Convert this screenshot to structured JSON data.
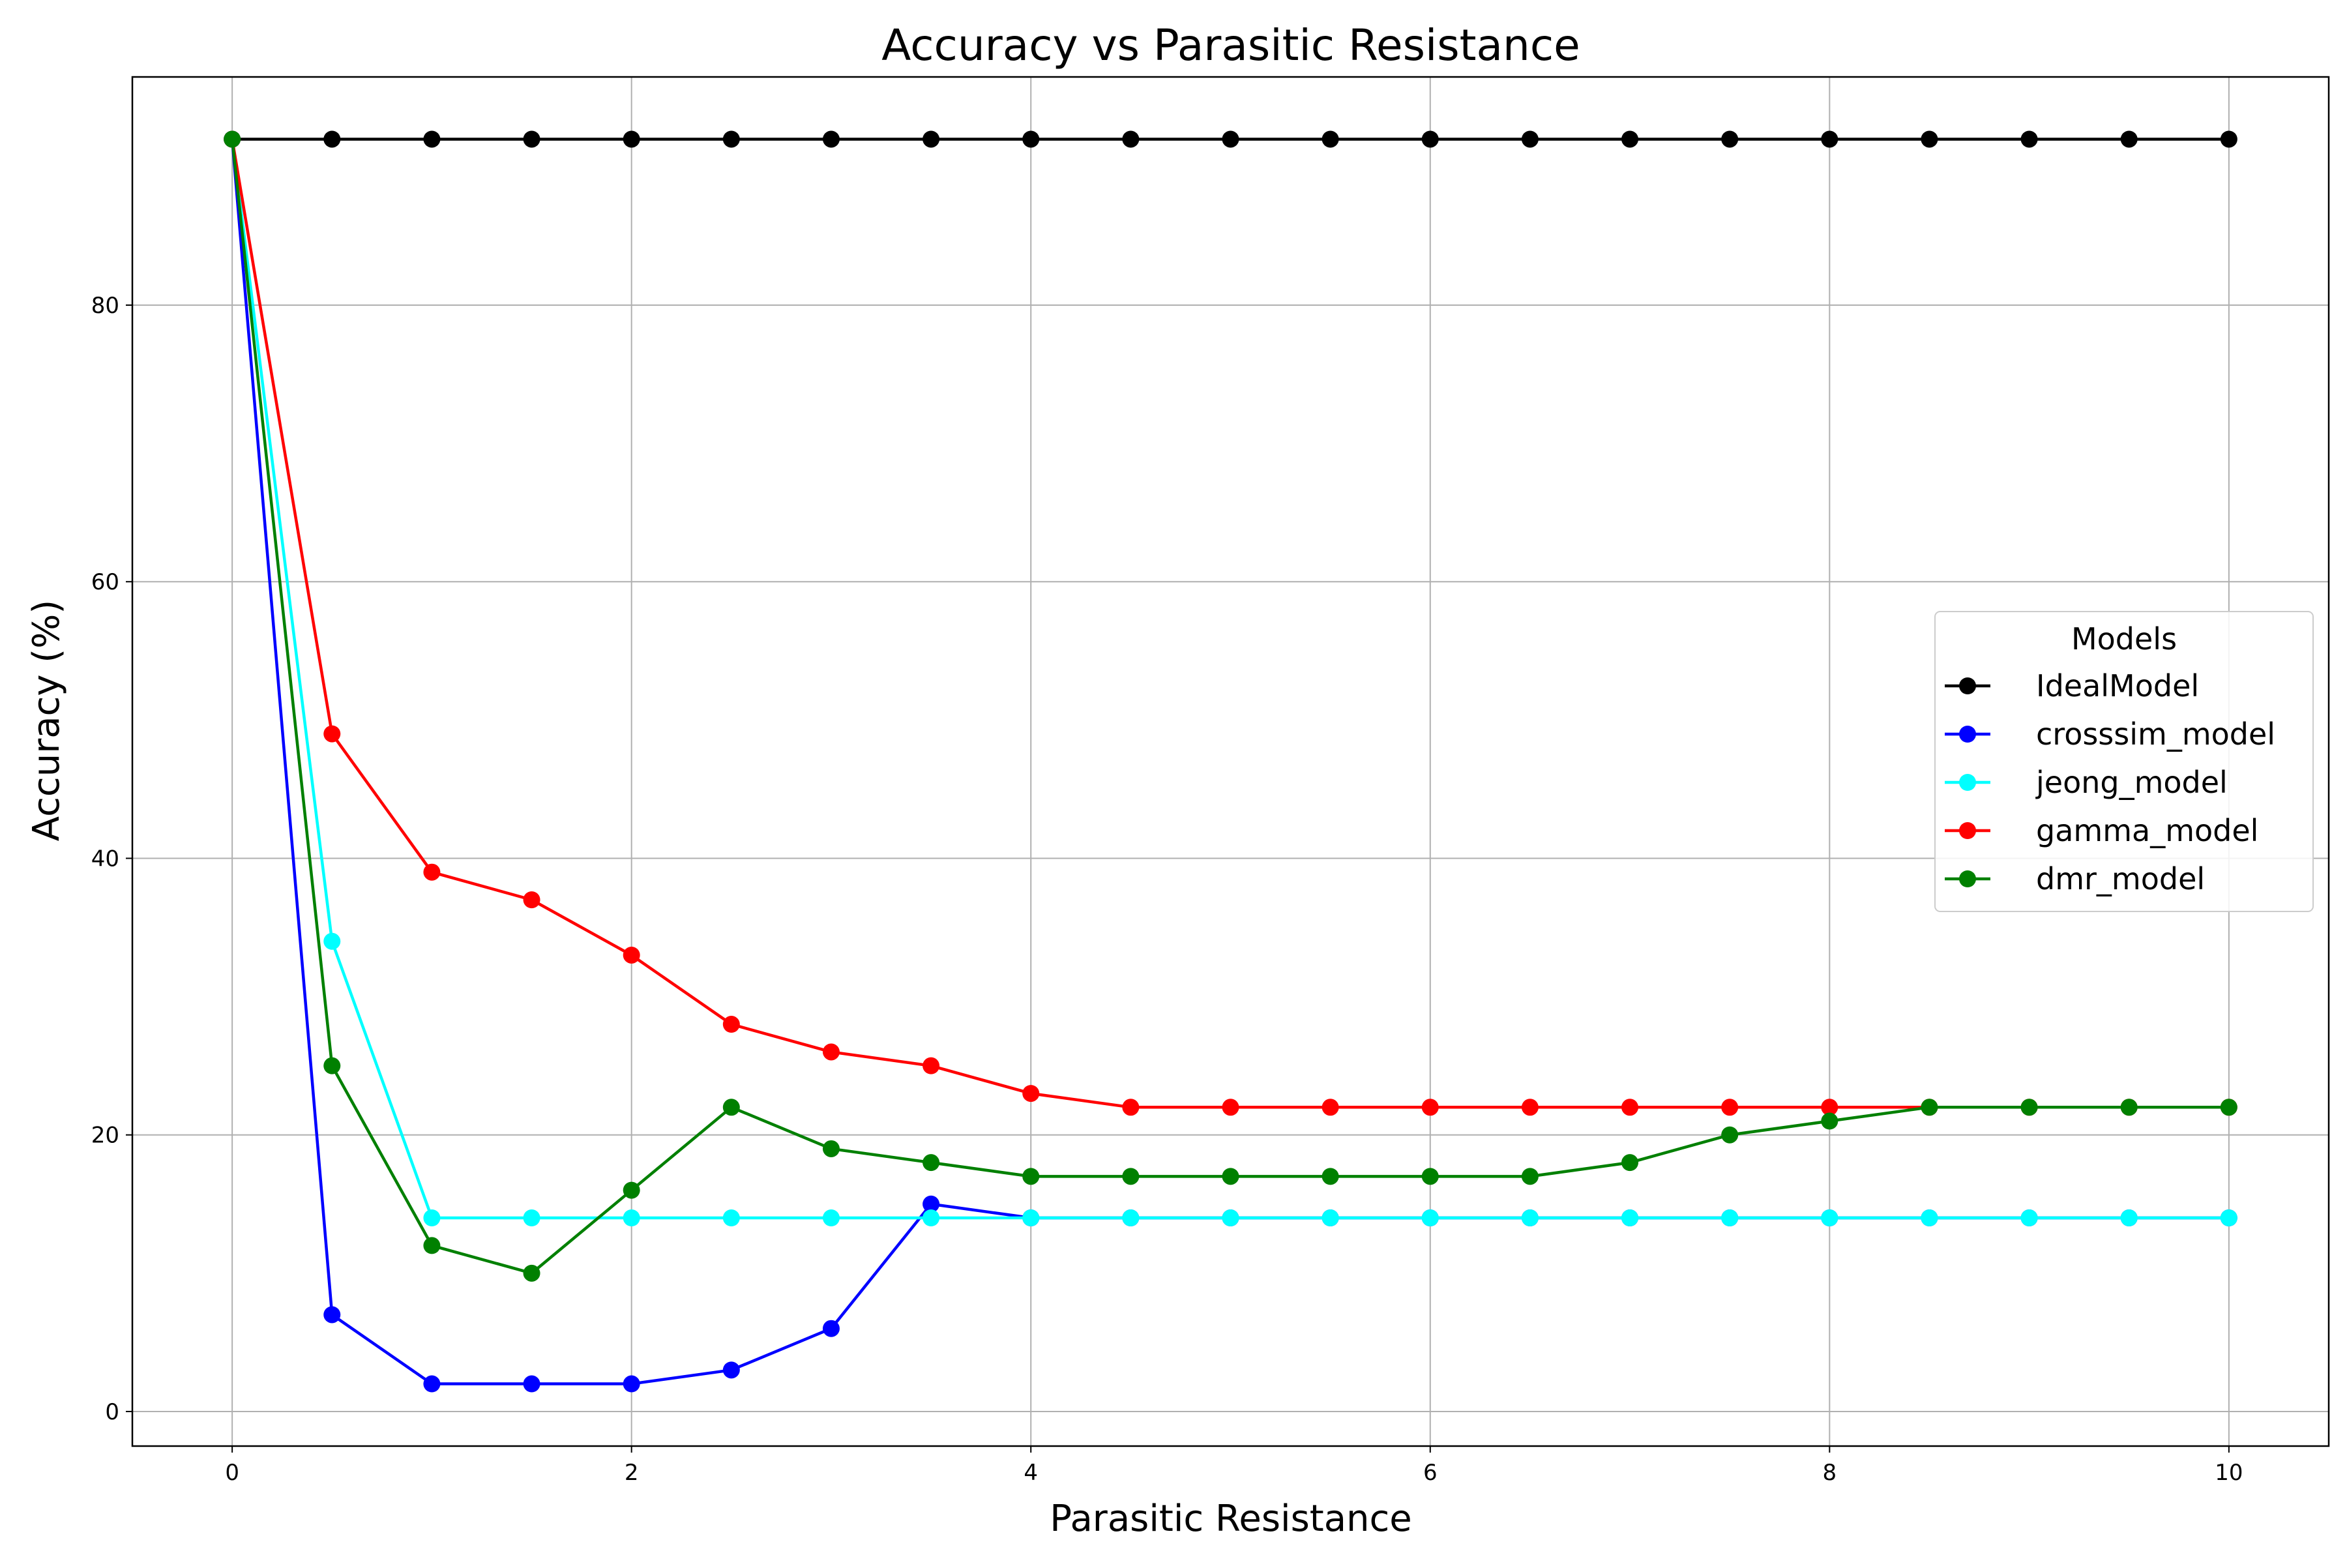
{
  "chart_data": {
    "type": "line",
    "title": "Accuracy vs Parasitic Resistance",
    "xlabel": "Parasitic Resistance",
    "ylabel": "Accuracy (%)",
    "xlim": [
      -0.5,
      10.5
    ],
    "ylim": [
      -2.5,
      96.5
    ],
    "xticks": [
      "0",
      "2",
      "4",
      "6",
      "8",
      "10"
    ],
    "yticks": [
      "0",
      "20",
      "40",
      "60",
      "80"
    ],
    "grid": true,
    "legend": {
      "title": "Models",
      "placement": "center-right"
    },
    "x": [
      0,
      0.5,
      1,
      1.5,
      2,
      2.5,
      3,
      3.5,
      4,
      4.5,
      5,
      5.5,
      6,
      6.5,
      7,
      7.5,
      8,
      8.5,
      9,
      9.5,
      10
    ],
    "series": [
      {
        "name": "IdealModel",
        "color": "#000000",
        "values": [
          92,
          92,
          92,
          92,
          92,
          92,
          92,
          92,
          92,
          92,
          92,
          92,
          92,
          92,
          92,
          92,
          92,
          92,
          92,
          92,
          92
        ]
      },
      {
        "name": "crosssim_model",
        "color": "#0000ff",
        "values": [
          92,
          7,
          2,
          2,
          2,
          3,
          6,
          15,
          14,
          14,
          14,
          14,
          14,
          14,
          14,
          14,
          14,
          14,
          14,
          14,
          14
        ]
      },
      {
        "name": "jeong_model",
        "color": "#00ffff",
        "values": [
          92,
          34,
          14,
          14,
          14,
          14,
          14,
          14,
          14,
          14,
          14,
          14,
          14,
          14,
          14,
          14,
          14,
          14,
          14,
          14,
          14
        ]
      },
      {
        "name": "gamma_model",
        "color": "#ff0000",
        "values": [
          92,
          49,
          39,
          37,
          33,
          28,
          26,
          25,
          23,
          22,
          22,
          22,
          22,
          22,
          22,
          22,
          22,
          22,
          22,
          22,
          22
        ]
      },
      {
        "name": "dmr_model",
        "color": "#008000",
        "values": [
          92,
          25,
          12,
          10,
          16,
          22,
          19,
          18,
          17,
          17,
          17,
          17,
          17,
          17,
          18,
          20,
          21,
          22,
          22,
          22,
          22
        ]
      }
    ]
  }
}
